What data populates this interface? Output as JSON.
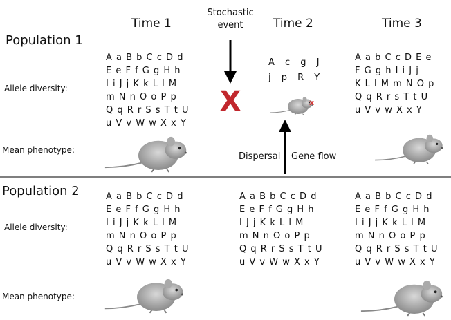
{
  "headers": [
    "Time 1",
    "Time 2",
    "Time 3"
  ],
  "stochastic_event": "Stochastic event",
  "dispersal": "Dispersal",
  "gene_flow": "Gene flow",
  "populations": [
    {
      "label": "Population 1",
      "allele_label": "Allele diversity:",
      "phenotype_label": "Mean phenotype:",
      "alleles": [
        [
          "A a B b C c D d",
          "E e F f G g H h",
          "I i J j K k L l M",
          "m N n O o P p",
          "Q q R r S s T t U",
          "u V v W w X x Y"
        ],
        [
          "A c g J",
          "j p R Y"
        ],
        [
          "A a b C c D E e",
          "F G g h I i J j",
          "K L l M m N O p",
          "Q q R r s T t U",
          "u V v w X x Y"
        ]
      ]
    },
    {
      "label": "Population 2",
      "allele_label": "Allele diversity:",
      "phenotype_label": "Mean phenotype:",
      "alleles": [
        [
          "A a B b C c D d",
          "E e F f G g H h",
          "I i J j K k L l M",
          "m N n O o P p",
          "Q q R r S s T t U",
          "u V v W w X x Y"
        ],
        [
          "A a B b C c D d",
          "E e F f G g H h",
          "I J j K k L l M",
          "m N n O o P p",
          "Q q R r S s T t U",
          "u V v W w X x Y"
        ],
        [
          "A a B b C c D d",
          "E e F f G g H h",
          "I i J j K k L l M",
          "m N n O o P p",
          "Q q R r S s T t U",
          "u V v W w X x Y"
        ]
      ]
    }
  ]
}
